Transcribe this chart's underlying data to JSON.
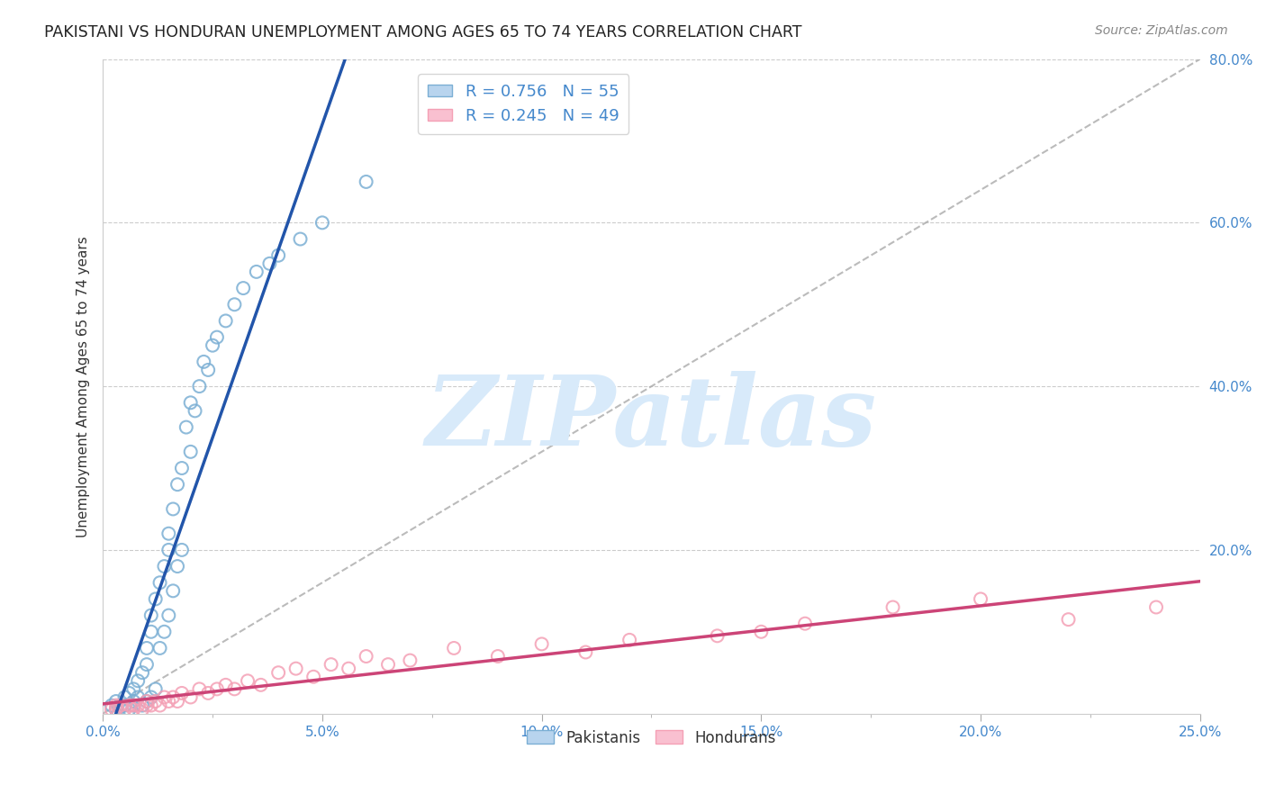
{
  "title": "PAKISTANI VS HONDURAN UNEMPLOYMENT AMONG AGES 65 TO 74 YEARS CORRELATION CHART",
  "source": "Source: ZipAtlas.com",
  "ylabel": "Unemployment Among Ages 65 to 74 years",
  "xlim": [
    0.0,
    0.25
  ],
  "ylim": [
    0.0,
    0.8
  ],
  "blue_R": 0.756,
  "blue_N": 55,
  "pink_R": 0.245,
  "pink_N": 49,
  "blue_color": "#7BAFD4",
  "pink_color": "#F4A0B5",
  "blue_line_color": "#2255AA",
  "pink_line_color": "#CC4477",
  "axis_label_color": "#4488CC",
  "background_color": "#FFFFFF",
  "grid_color": "#CCCCCC",
  "title_color": "#222222",
  "watermark_color": "#D8EAFA",
  "blue_x": [
    0.001,
    0.002,
    0.003,
    0.003,
    0.004,
    0.005,
    0.005,
    0.006,
    0.006,
    0.007,
    0.007,
    0.007,
    0.008,
    0.008,
    0.009,
    0.009,
    0.01,
    0.01,
    0.01,
    0.011,
    0.011,
    0.011,
    0.012,
    0.012,
    0.013,
    0.013,
    0.014,
    0.014,
    0.015,
    0.015,
    0.015,
    0.016,
    0.016,
    0.017,
    0.017,
    0.018,
    0.018,
    0.019,
    0.02,
    0.02,
    0.021,
    0.022,
    0.023,
    0.024,
    0.025,
    0.026,
    0.028,
    0.03,
    0.032,
    0.035,
    0.038,
    0.04,
    0.045,
    0.05,
    0.06
  ],
  "blue_y": [
    0.005,
    0.01,
    0.005,
    0.015,
    0.008,
    0.01,
    0.02,
    0.005,
    0.025,
    0.01,
    0.015,
    0.03,
    0.02,
    0.04,
    0.01,
    0.05,
    0.015,
    0.06,
    0.08,
    0.02,
    0.1,
    0.12,
    0.03,
    0.14,
    0.08,
    0.16,
    0.1,
    0.18,
    0.12,
    0.2,
    0.22,
    0.15,
    0.25,
    0.18,
    0.28,
    0.2,
    0.3,
    0.35,
    0.32,
    0.38,
    0.37,
    0.4,
    0.43,
    0.42,
    0.45,
    0.46,
    0.48,
    0.5,
    0.52,
    0.54,
    0.55,
    0.56,
    0.58,
    0.6,
    0.65
  ],
  "pink_x": [
    0.001,
    0.002,
    0.003,
    0.003,
    0.004,
    0.005,
    0.006,
    0.007,
    0.007,
    0.008,
    0.009,
    0.01,
    0.01,
    0.011,
    0.012,
    0.013,
    0.014,
    0.015,
    0.016,
    0.017,
    0.018,
    0.02,
    0.022,
    0.024,
    0.026,
    0.028,
    0.03,
    0.033,
    0.036,
    0.04,
    0.044,
    0.048,
    0.052,
    0.056,
    0.06,
    0.065,
    0.07,
    0.08,
    0.09,
    0.1,
    0.11,
    0.12,
    0.14,
    0.15,
    0.16,
    0.18,
    0.2,
    0.22,
    0.24
  ],
  "pink_y": [
    0.005,
    0.005,
    0.01,
    0.005,
    0.01,
    0.005,
    0.01,
    0.005,
    0.01,
    0.01,
    0.005,
    0.01,
    0.015,
    0.01,
    0.015,
    0.01,
    0.02,
    0.015,
    0.02,
    0.015,
    0.025,
    0.02,
    0.03,
    0.025,
    0.03,
    0.035,
    0.03,
    0.04,
    0.035,
    0.05,
    0.055,
    0.045,
    0.06,
    0.055,
    0.07,
    0.06,
    0.065,
    0.08,
    0.07,
    0.085,
    0.075,
    0.09,
    0.095,
    0.1,
    0.11,
    0.13,
    0.14,
    0.115,
    0.13
  ]
}
